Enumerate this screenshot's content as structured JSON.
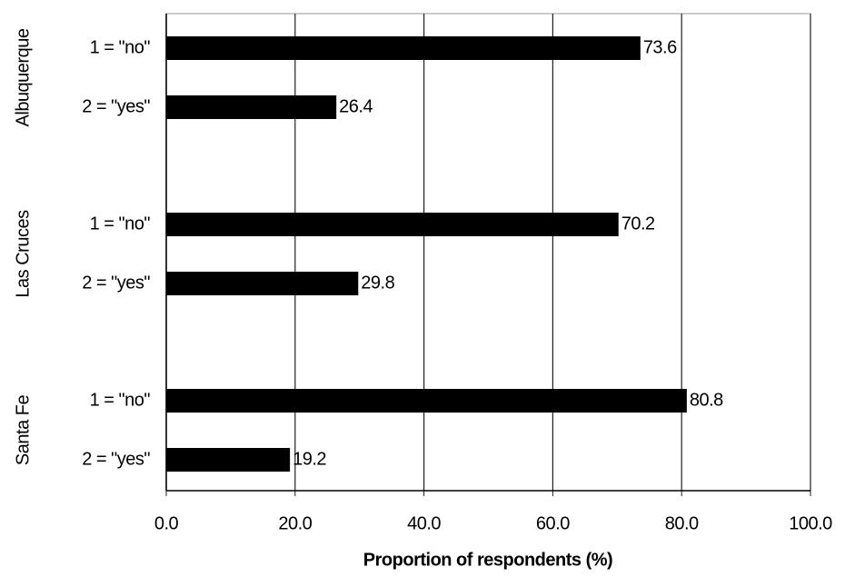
{
  "chart_data": {
    "type": "bar",
    "orientation": "horizontal",
    "x_label": "Proportion of respondents (%)",
    "groups": [
      {
        "name": "Albuquerque",
        "categories": [
          "1 = \"no\"",
          "2 = \"yes\""
        ],
        "values": [
          73.6,
          26.4
        ]
      },
      {
        "name": "Las Cruces",
        "categories": [
          "1 = \"no\"",
          "2 = \"yes\""
        ],
        "values": [
          70.2,
          29.8
        ]
      },
      {
        "name": "Santa Fe",
        "categories": [
          "1 = \"no\"",
          "2 = \"yes\""
        ],
        "values": [
          80.8,
          19.2
        ]
      }
    ],
    "color": "#000000",
    "xlim": [
      0,
      100
    ],
    "xticks": [
      {
        "value": 0,
        "label": "0.0"
      },
      {
        "value": 20,
        "label": "20.0"
      },
      {
        "value": 40,
        "label": "40.0"
      },
      {
        "value": 60,
        "label": "60.0"
      },
      {
        "value": 80,
        "label": "80.0"
      },
      {
        "value": 100,
        "label": "100.0"
      }
    ],
    "grid": true
  }
}
